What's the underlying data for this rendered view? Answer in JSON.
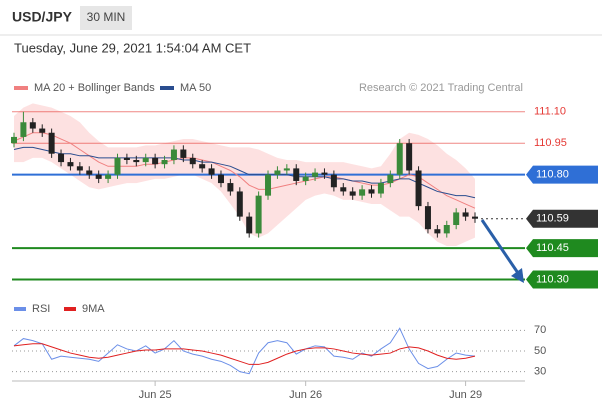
{
  "chart_data": [
    {
      "type": "candlestick",
      "title": "USD/JPY",
      "timeframe": "30 MIN",
      "subtitle": "Tuesday, June 29, 2021 1:54:04 AM CET",
      "credit": "Research © 2021 Trading Central",
      "ylim": [
        110.25,
        111.18
      ],
      "up_color": "#3a8a3a",
      "down_color": "#222222",
      "candles": {
        "open": [
          110.95,
          110.98,
          111.05,
          111.02,
          111.0,
          110.9,
          110.86,
          110.84,
          110.82,
          110.8,
          110.78,
          110.8,
          110.88,
          110.87,
          110.86,
          110.88,
          110.85,
          110.87,
          110.92,
          110.88,
          110.85,
          110.83,
          110.8,
          110.76,
          110.72,
          110.6,
          110.52,
          110.7,
          110.8,
          110.82,
          110.83,
          110.77,
          110.79,
          110.81,
          110.8,
          110.74,
          110.72,
          110.7,
          110.73,
          110.71,
          110.76,
          110.8,
          110.95,
          110.82,
          110.65,
          110.54,
          110.52,
          110.56,
          110.62,
          110.6
        ],
        "high": [
          111.0,
          111.1,
          111.07,
          111.04,
          111.02,
          110.92,
          110.88,
          110.86,
          110.84,
          110.82,
          110.82,
          110.9,
          110.9,
          110.89,
          110.9,
          110.9,
          110.89,
          110.94,
          110.94,
          110.9,
          110.87,
          110.85,
          110.82,
          110.78,
          110.74,
          110.62,
          110.72,
          110.82,
          110.84,
          110.85,
          110.85,
          110.81,
          110.83,
          110.83,
          110.82,
          110.76,
          110.74,
          110.75,
          110.75,
          110.78,
          110.82,
          110.97,
          110.97,
          110.84,
          110.67,
          110.56,
          110.58,
          110.64,
          110.64,
          110.62
        ],
        "low": [
          110.93,
          110.96,
          111.0,
          110.98,
          110.88,
          110.84,
          110.82,
          110.8,
          110.78,
          110.76,
          110.76,
          110.78,
          110.85,
          110.84,
          110.84,
          110.83,
          110.83,
          110.85,
          110.86,
          110.83,
          110.81,
          110.78,
          110.74,
          110.7,
          110.58,
          110.5,
          110.5,
          110.68,
          110.78,
          110.8,
          110.75,
          110.75,
          110.77,
          110.78,
          110.72,
          110.7,
          110.68,
          110.68,
          110.69,
          110.69,
          110.74,
          110.78,
          110.8,
          110.63,
          110.52,
          110.5,
          110.5,
          110.54,
          110.58,
          110.57
        ],
        "close": [
          110.98,
          111.05,
          111.02,
          111.0,
          110.9,
          110.86,
          110.84,
          110.82,
          110.8,
          110.78,
          110.8,
          110.88,
          110.87,
          110.86,
          110.88,
          110.85,
          110.87,
          110.92,
          110.88,
          110.85,
          110.83,
          110.8,
          110.76,
          110.72,
          110.6,
          110.52,
          110.7,
          110.8,
          110.82,
          110.83,
          110.77,
          110.79,
          110.81,
          110.8,
          110.74,
          110.72,
          110.7,
          110.73,
          110.71,
          110.76,
          110.8,
          110.95,
          110.82,
          110.65,
          110.54,
          110.52,
          110.56,
          110.62,
          110.6,
          110.59
        ]
      },
      "series": [
        {
          "name": "MA 20 + Bollinger Bands",
          "color": "#f08080",
          "band_color": "#fcd9d9",
          "values": [
            110.96,
            110.98,
            111.0,
            111.0,
            110.99,
            110.97,
            110.95,
            110.92,
            110.89,
            110.86,
            110.84,
            110.84,
            110.84,
            110.84,
            110.85,
            110.85,
            110.86,
            110.87,
            110.88,
            110.88,
            110.87,
            110.86,
            110.84,
            110.82,
            110.79,
            110.75,
            110.73,
            110.73,
            110.74,
            110.75,
            110.76,
            110.77,
            110.78,
            110.79,
            110.79,
            110.78,
            110.77,
            110.76,
            110.75,
            110.75,
            110.76,
            110.78,
            110.8,
            110.79,
            110.76,
            110.73,
            110.7,
            110.68,
            110.66,
            110.64
          ],
          "upper": [
            111.08,
            111.12,
            111.14,
            111.13,
            111.12,
            111.1,
            111.08,
            111.05,
            111.0,
            110.96,
            110.93,
            110.93,
            110.93,
            110.93,
            110.94,
            110.94,
            110.95,
            110.96,
            110.97,
            110.97,
            110.96,
            110.95,
            110.94,
            110.93,
            110.93,
            110.93,
            110.92,
            110.9,
            110.88,
            110.87,
            110.87,
            110.86,
            110.86,
            110.86,
            110.86,
            110.86,
            110.85,
            110.84,
            110.83,
            110.84,
            110.9,
            110.97,
            111.0,
            110.99,
            110.97,
            110.94,
            110.9,
            110.87,
            110.83,
            110.78
          ],
          "lower": [
            110.86,
            110.86,
            110.88,
            110.88,
            110.86,
            110.83,
            110.8,
            110.77,
            110.74,
            110.73,
            110.74,
            110.75,
            110.76,
            110.76,
            110.77,
            110.78,
            110.78,
            110.79,
            110.8,
            110.8,
            110.78,
            110.76,
            110.72,
            110.66,
            110.6,
            110.52,
            110.5,
            110.52,
            110.56,
            110.6,
            110.64,
            110.68,
            110.7,
            110.71,
            110.7,
            110.68,
            110.68,
            110.67,
            110.66,
            110.66,
            110.63,
            110.6,
            110.6,
            110.57,
            110.52,
            110.48,
            110.46,
            110.46,
            110.48,
            110.5
          ]
        },
        {
          "name": "MA 50",
          "color": "#2a4d8f",
          "values": [
            110.92,
            110.93,
            110.93,
            110.92,
            110.91,
            110.9,
            110.9,
            110.89,
            110.89,
            110.88,
            110.88,
            110.88,
            110.88,
            110.88,
            110.88,
            110.88,
            110.88,
            110.88,
            110.87,
            110.87,
            110.86,
            110.86,
            110.85,
            110.84,
            110.82,
            110.8,
            110.8,
            110.8,
            110.8,
            110.8,
            110.79,
            110.79,
            110.79,
            110.79,
            110.78,
            110.78,
            110.77,
            110.77,
            110.76,
            110.76,
            110.77,
            110.78,
            110.78,
            110.76,
            110.74,
            110.72,
            110.71,
            110.7,
            110.7,
            110.69
          ]
        }
      ],
      "levels": [
        {
          "value": 111.1,
          "label": "111.10",
          "color": "#e53935",
          "kind": "text"
        },
        {
          "value": 110.95,
          "label": "110.95",
          "color": "#e53935",
          "kind": "text"
        },
        {
          "value": 110.8,
          "label": "110.80",
          "color": "#2f6fd6",
          "kind": "badge"
        },
        {
          "value": 110.59,
          "label": "110.59",
          "color": "#333333",
          "kind": "current"
        },
        {
          "value": 110.45,
          "label": "110.45",
          "color": "#1f8a1f",
          "kind": "badge"
        },
        {
          "value": 110.3,
          "label": "110.30",
          "color": "#1f8a1f",
          "kind": "badge"
        }
      ]
    },
    {
      "type": "line",
      "ylim": [
        20,
        80
      ],
      "yticks": [
        70,
        50,
        30
      ],
      "categories": [
        null,
        null,
        null,
        null,
        null,
        null,
        null,
        null,
        null,
        null,
        null,
        null,
        null,
        null,
        null,
        "Jun 25",
        null,
        null,
        null,
        null,
        null,
        null,
        null,
        null,
        null,
        null,
        null,
        null,
        null,
        null,
        null,
        "Jun 26",
        null,
        null,
        null,
        null,
        null,
        null,
        null,
        null,
        null,
        null,
        null,
        null,
        null,
        null,
        null,
        null,
        "Jun 29",
        null
      ],
      "series": [
        {
          "name": "RSI",
          "color": "#6b8fe8",
          "values": [
            55,
            62,
            60,
            57,
            42,
            45,
            44,
            43,
            42,
            40,
            48,
            56,
            52,
            50,
            55,
            48,
            52,
            60,
            50,
            47,
            45,
            42,
            40,
            36,
            30,
            28,
            48,
            58,
            60,
            58,
            47,
            52,
            55,
            54,
            45,
            44,
            42,
            48,
            45,
            52,
            58,
            72,
            52,
            38,
            33,
            35,
            42,
            48,
            46,
            45
          ]
        },
        {
          "name": "9MA",
          "color": "#e02020",
          "values": [
            55,
            56,
            57,
            57,
            54,
            51,
            48,
            46,
            44,
            43,
            44,
            46,
            48,
            50,
            51,
            51,
            52,
            52,
            52,
            51,
            50,
            48,
            46,
            43,
            40,
            37,
            37,
            39,
            43,
            47,
            50,
            52,
            53,
            53,
            52,
            50,
            48,
            47,
            46,
            47,
            48,
            52,
            54,
            53,
            50,
            46,
            43,
            42,
            43,
            45
          ]
        }
      ]
    }
  ]
}
